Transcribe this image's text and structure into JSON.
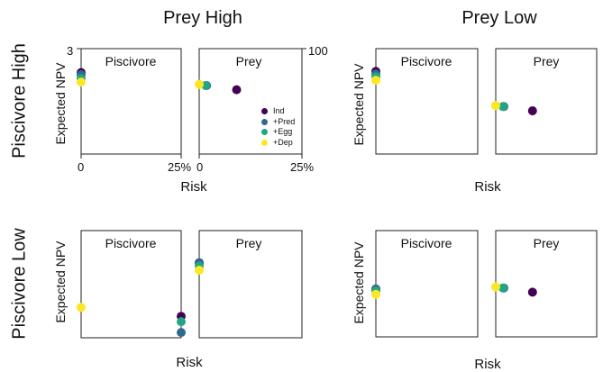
{
  "figure": {
    "col_titles": [
      "Prey High",
      "Prey Low"
    ],
    "row_titles": [
      "Piscivore High",
      "Piscivore Low"
    ],
    "ylabel": "Expected NPV",
    "xlabel": "Risk",
    "panel_titles": [
      "Piscivore",
      "Prey"
    ],
    "tick_labels": {
      "pisc_x_min": "0",
      "pisc_x_max": "25%",
      "prey_x_min": "0",
      "prey_x_max": "25%",
      "pisc_y_max": "3",
      "prey_y_max": "100"
    }
  },
  "legend": [
    {
      "label": "Ind",
      "color": "#440154"
    },
    {
      "label": "+Pred",
      "color": "#31688e"
    },
    {
      "label": "+Egg",
      "color": "#21a585"
    },
    {
      "label": "+Dep",
      "color": "#fde725"
    }
  ],
  "chart_data": [
    {
      "type": "scatter",
      "row": "Piscivore High",
      "col": "Prey High",
      "panel": "Piscivore",
      "xlabel": "Risk",
      "ylabel": "Expected NPV",
      "xlim": [
        0,
        25
      ],
      "ylim": [
        0,
        3
      ],
      "series": [
        {
          "name": "Ind",
          "x": [
            0
          ],
          "y": [
            2.32
          ]
        },
        {
          "name": "+Pred",
          "x": [
            0
          ],
          "y": [
            2.26
          ]
        },
        {
          "name": "+Egg",
          "x": [
            0
          ],
          "y": [
            2.15
          ]
        },
        {
          "name": "+Dep",
          "x": [
            0
          ],
          "y": [
            2.05
          ]
        }
      ]
    },
    {
      "type": "scatter",
      "row": "Piscivore High",
      "col": "Prey High",
      "panel": "Prey",
      "xlim": [
        0,
        25
      ],
      "ylim": [
        0,
        100
      ],
      "series": [
        {
          "name": "Ind",
          "x": [
            9.1
          ],
          "y": [
            61
          ]
        },
        {
          "name": "+Pred",
          "x": [
            1.8
          ],
          "y": [
            65
          ]
        },
        {
          "name": "+Egg",
          "x": [
            1.6
          ],
          "y": [
            65
          ]
        },
        {
          "name": "+Dep",
          "x": [
            0
          ],
          "y": [
            66
          ]
        }
      ]
    },
    {
      "type": "scatter",
      "row": "Piscivore High",
      "col": "Prey Low",
      "panel": "Piscivore",
      "xlim": [
        0,
        25
      ],
      "ylim": [
        0,
        3
      ],
      "series": [
        {
          "name": "Ind",
          "x": [
            0
          ],
          "y": [
            2.35
          ]
        },
        {
          "name": "+Pred",
          "x": [
            0
          ],
          "y": [
            2.28
          ]
        },
        {
          "name": "+Egg",
          "x": [
            0
          ],
          "y": [
            2.2
          ]
        },
        {
          "name": "+Dep",
          "x": [
            0
          ],
          "y": [
            2.1
          ]
        }
      ]
    },
    {
      "type": "scatter",
      "row": "Piscivore High",
      "col": "Prey Low",
      "panel": "Prey",
      "xlim": [
        0,
        25
      ],
      "ylim": [
        0,
        100
      ],
      "series": [
        {
          "name": "Ind",
          "x": [
            9.1
          ],
          "y": [
            41
          ]
        },
        {
          "name": "+Pred",
          "x": [
            2.0
          ],
          "y": [
            45
          ]
        },
        {
          "name": "+Egg",
          "x": [
            1.8
          ],
          "y": [
            45
          ]
        },
        {
          "name": "+Dep",
          "x": [
            0
          ],
          "y": [
            46
          ]
        }
      ]
    },
    {
      "type": "scatter",
      "row": "Piscivore Low",
      "col": "Prey High",
      "panel": "Piscivore",
      "xlim": [
        0,
        25
      ],
      "ylim": [
        0,
        3
      ],
      "series": [
        {
          "name": "Ind",
          "x": [
            25
          ],
          "y": [
            0.6
          ]
        },
        {
          "name": "+Pred",
          "x": [
            25
          ],
          "y": [
            0.15
          ]
        },
        {
          "name": "+Egg",
          "x": [
            25
          ],
          "y": [
            0.45
          ]
        },
        {
          "name": "+Dep",
          "x": [
            0
          ],
          "y": [
            0.85
          ]
        }
      ]
    },
    {
      "type": "scatter",
      "row": "Piscivore Low",
      "col": "Prey High",
      "panel": "Prey",
      "xlim": [
        0,
        25
      ],
      "ylim": [
        0,
        100
      ],
      "series": [
        {
          "name": "Ind",
          "x": [
            0
          ],
          "y": [
            70
          ]
        },
        {
          "name": "+Pred",
          "x": [
            0
          ],
          "y": [
            70
          ]
        },
        {
          "name": "+Egg",
          "x": [
            0
          ],
          "y": [
            67
          ]
        },
        {
          "name": "+Dep",
          "x": [
            0
          ],
          "y": [
            63
          ]
        }
      ]
    },
    {
      "type": "scatter",
      "row": "Piscivore Low",
      "col": "Prey Low",
      "panel": "Piscivore",
      "xlim": [
        0,
        25
      ],
      "ylim": [
        0,
        3
      ],
      "series": [
        {
          "name": "Ind",
          "x": [
            0
          ],
          "y": [
            1.35
          ]
        },
        {
          "name": "+Pred",
          "x": [
            0
          ],
          "y": [
            1.35
          ]
        },
        {
          "name": "+Egg",
          "x": [
            0
          ],
          "y": [
            1.3
          ]
        },
        {
          "name": "+Dep",
          "x": [
            0
          ],
          "y": [
            1.2
          ]
        }
      ]
    },
    {
      "type": "scatter",
      "row": "Piscivore Low",
      "col": "Prey Low",
      "panel": "Prey",
      "xlim": [
        0,
        25
      ],
      "ylim": [
        0,
        100
      ],
      "series": [
        {
          "name": "Ind",
          "x": [
            9.1
          ],
          "y": [
            42
          ]
        },
        {
          "name": "+Pred",
          "x": [
            2.0
          ],
          "y": [
            46
          ]
        },
        {
          "name": "+Egg",
          "x": [
            1.8
          ],
          "y": [
            46
          ]
        },
        {
          "name": "+Dep",
          "x": [
            0
          ],
          "y": [
            47
          ]
        }
      ]
    }
  ]
}
